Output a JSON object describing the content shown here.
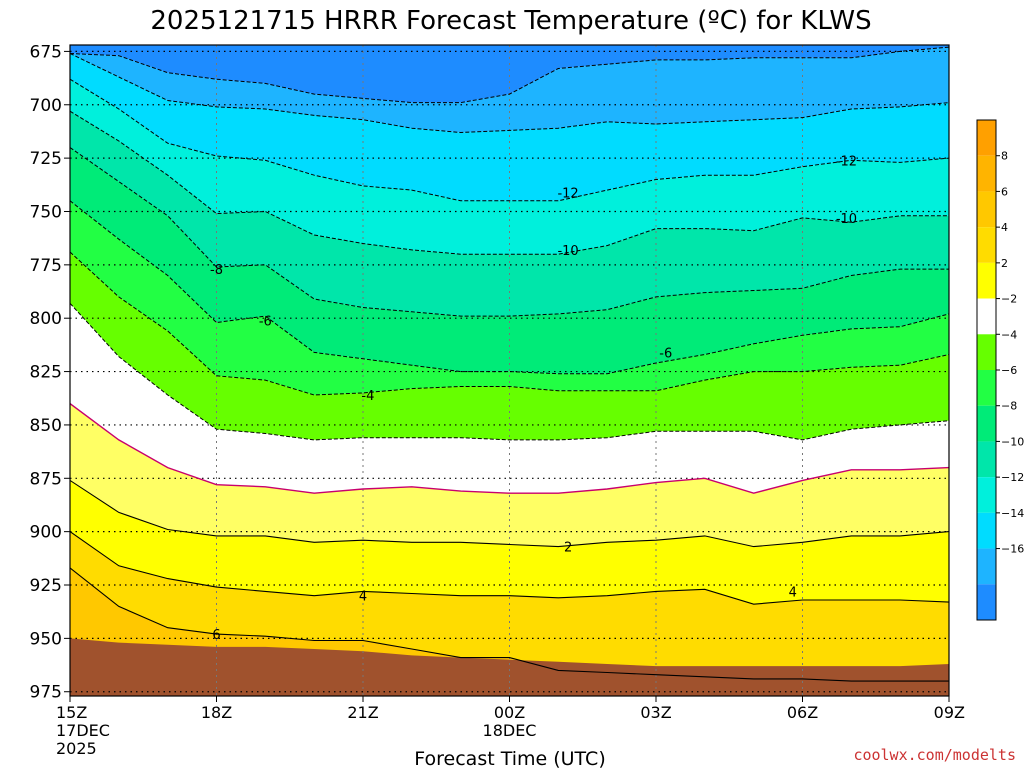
{
  "chart_data": {
    "type": "contour",
    "title": "2025121715 HRRR Forecast Temperature (ºC) for KLWS",
    "xlabel": "Forecast Time (UTC)",
    "ylabel": "",
    "x_hours": [
      0,
      1,
      2,
      3,
      4,
      5,
      6,
      7,
      8,
      9,
      10,
      11,
      12,
      13,
      14,
      15,
      16,
      17,
      18
    ],
    "x_ticks": [
      {
        "hour": 0,
        "label": "15Z",
        "sub1": "17DEC",
        "sub2": "2025"
      },
      {
        "hour": 3,
        "label": "18Z",
        "sub1": "",
        "sub2": ""
      },
      {
        "hour": 6,
        "label": "21Z",
        "sub1": "",
        "sub2": ""
      },
      {
        "hour": 9,
        "label": "00Z",
        "sub1": "18DEC",
        "sub2": ""
      },
      {
        "hour": 12,
        "label": "03Z",
        "sub1": "",
        "sub2": ""
      },
      {
        "hour": 15,
        "label": "06Z",
        "sub1": "",
        "sub2": ""
      },
      {
        "hour": 18,
        "label": "09Z",
        "sub1": "",
        "sub2": ""
      }
    ],
    "y_ticks": [
      "675",
      "700",
      "725",
      "750",
      "775",
      "800",
      "825",
      "850",
      "875",
      "900",
      "925",
      "950",
      "975"
    ],
    "y_range_hpa": [
      672,
      977
    ],
    "contours": [
      {
        "level": -16,
        "p": [
          676,
          677,
          685,
          688,
          690,
          695,
          697,
          699,
          699,
          695,
          683,
          681,
          679,
          679,
          678,
          678,
          678,
          675,
          673
        ]
      },
      {
        "level": -14,
        "p": [
          676,
          687,
          698,
          701,
          702,
          705,
          707,
          711,
          713,
          712,
          711,
          708,
          709,
          708,
          707,
          706,
          702,
          701,
          699
        ]
      },
      {
        "level": -12,
        "p": [
          688,
          702,
          718,
          724,
          726,
          733,
          738,
          740,
          745,
          745,
          745,
          740,
          735,
          733,
          733,
          729,
          726,
          727,
          725
        ]
      },
      {
        "level": -10,
        "p": [
          703,
          717,
          733,
          751,
          750,
          761,
          765,
          768,
          770,
          770,
          770,
          766,
          758,
          758,
          759,
          753,
          755,
          752,
          752
        ]
      },
      {
        "level": -8,
        "p": [
          720,
          736,
          752,
          776,
          775,
          791,
          795,
          797,
          799,
          799,
          798,
          796,
          790,
          788,
          787,
          786,
          780,
          777,
          777
        ]
      },
      {
        "level": -6,
        "p": [
          745,
          763,
          780,
          802,
          799,
          816,
          819,
          822,
          825,
          825,
          826,
          826,
          821,
          817,
          812,
          808,
          805,
          804,
          798
        ]
      },
      {
        "level": -4,
        "p": [
          769,
          790,
          806,
          827,
          829,
          836,
          835,
          833,
          832,
          832,
          834,
          834,
          834,
          829,
          825,
          825,
          823,
          822,
          817
        ]
      },
      {
        "level": -2,
        "p": [
          793,
          818,
          836,
          852,
          854,
          857,
          856,
          856,
          856,
          857,
          857,
          856,
          853,
          853,
          853,
          857,
          852,
          850,
          848
        ]
      },
      {
        "level": 0,
        "p": [
          840,
          857,
          870,
          878,
          879,
          882,
          880,
          879,
          881,
          882,
          882,
          880,
          877,
          875,
          882,
          876,
          871,
          871,
          870
        ]
      },
      {
        "level": 2,
        "p": [
          876,
          891,
          899,
          902,
          902,
          905,
          904,
          905,
          905,
          906,
          907,
          905,
          904,
          902,
          907,
          905,
          902,
          902,
          900
        ]
      },
      {
        "level": 4,
        "p": [
          900,
          916,
          922,
          926,
          928,
          930,
          928,
          929,
          930,
          930,
          931,
          930,
          928,
          927,
          934,
          932,
          932,
          932,
          933
        ]
      },
      {
        "level": 6,
        "p": [
          917,
          935,
          945,
          948,
          949,
          951,
          951,
          955,
          959,
          959,
          965,
          966,
          967,
          968,
          969,
          969,
          970,
          970,
          970
        ]
      }
    ],
    "contour_label_points": [
      {
        "text": "-12",
        "hour": 10.2,
        "p": 741
      },
      {
        "text": "-12",
        "hour": 15.9,
        "p": 726
      },
      {
        "text": "-10",
        "hour": 10.2,
        "p": 768
      },
      {
        "text": "-10",
        "hour": 15.9,
        "p": 753
      },
      {
        "text": "-8",
        "hour": 3.0,
        "p": 777
      },
      {
        "text": "-6",
        "hour": 4.0,
        "p": 801
      },
      {
        "text": "-6",
        "hour": 12.2,
        "p": 816
      },
      {
        "text": "-4",
        "hour": 6.1,
        "p": 836
      },
      {
        "text": "2",
        "hour": 10.2,
        "p": 907
      },
      {
        "text": "4",
        "hour": 6.0,
        "p": 930
      },
      {
        "text": "4",
        "hour": 14.8,
        "p": 928
      },
      {
        "text": "6",
        "hour": 3.0,
        "p": 948
      }
    ],
    "terrain_p": [
      950,
      952,
      953,
      954,
      954,
      955,
      956,
      958,
      959,
      960,
      961,
      962,
      963,
      963,
      963,
      963,
      963,
      963,
      962
    ],
    "fill_bands": [
      {
        "above": "top",
        "color": "#1e8cff"
      },
      {
        "above": -16,
        "color": "#1eb4ff"
      },
      {
        "above": -14,
        "color": "#00dcff"
      },
      {
        "above": -12,
        "color": "#00f0dc"
      },
      {
        "above": -10,
        "color": "#00e6aa"
      },
      {
        "above": -8,
        "color": "#00eb78"
      },
      {
        "above": -6,
        "color": "#22ff44"
      },
      {
        "above": -4,
        "color": "#66ff00"
      },
      {
        "above": -2,
        "color": "#ffffff"
      },
      {
        "above": 0,
        "color": "#ffff64"
      },
      {
        "above": 2,
        "color": "#ffff00"
      },
      {
        "above": 4,
        "color": "#ffdc00"
      },
      {
        "above": 6,
        "color": "#ffc800"
      }
    ],
    "terrain_color": "#a0522d",
    "zero_line_color": "#c8006e",
    "colorbar": {
      "labels": [
        "8",
        "6",
        "4",
        "2",
        "−2",
        "−4",
        "−6",
        "−8",
        "−10",
        "−12",
        "−14",
        "−16"
      ],
      "colors": [
        "#ffa000",
        "#ffb400",
        "#ffc800",
        "#ffdc00",
        "#ffff00",
        "#ffffff",
        "#66ff00",
        "#22ff44",
        "#00eb78",
        "#00e6aa",
        "#00f0dc",
        "#00dcff",
        "#1eb4ff",
        "#1e8cff"
      ]
    },
    "grid": true
  },
  "credit": "coolwx.com/modelts"
}
